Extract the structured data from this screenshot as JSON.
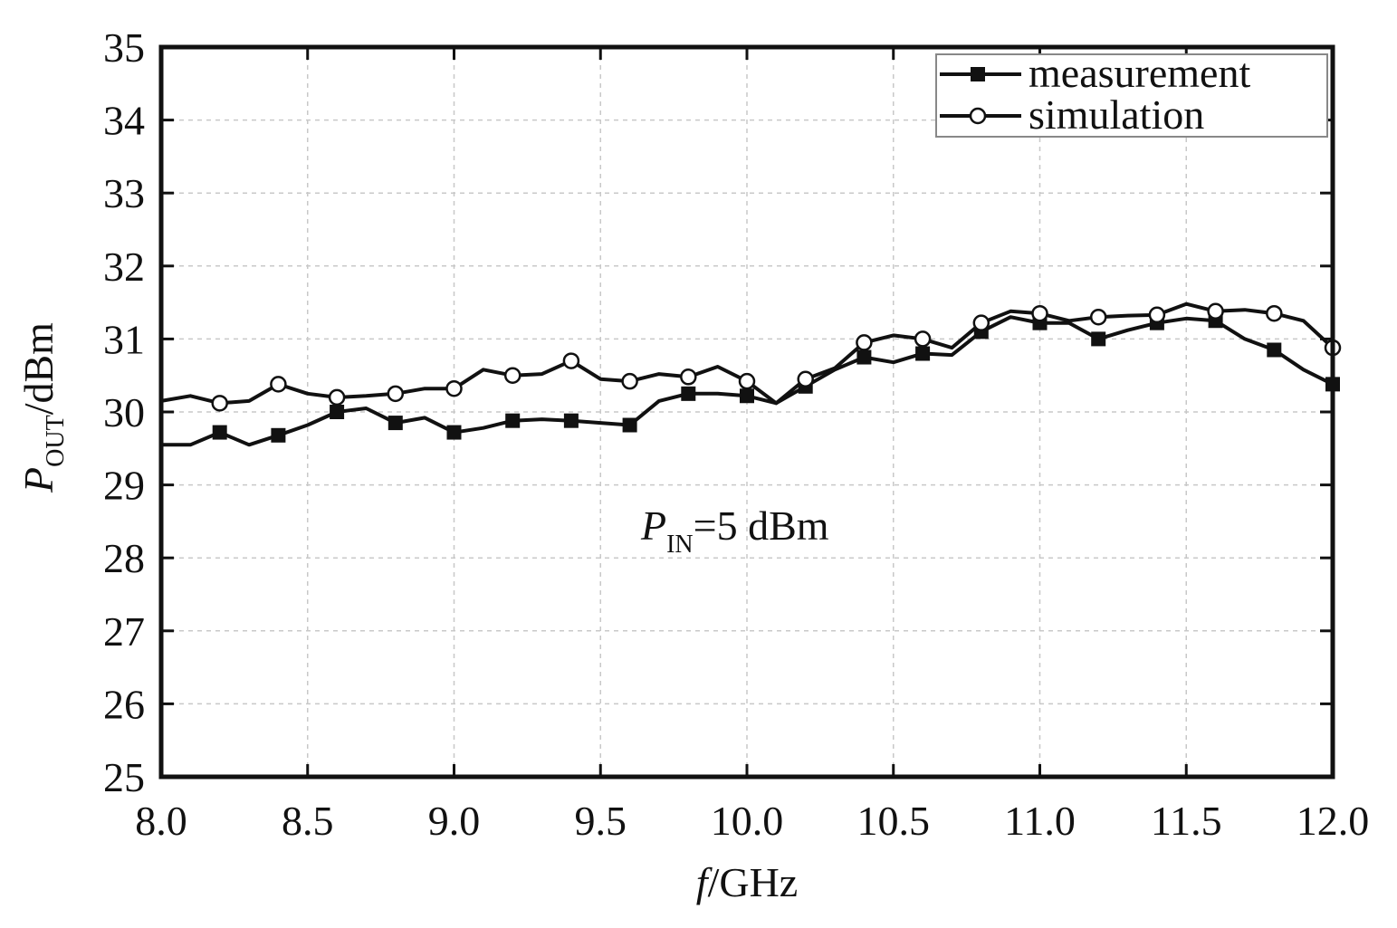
{
  "chart_data": {
    "type": "line",
    "xlabel": {
      "italic": "f",
      "rest": "/GHz"
    },
    "ylabel": {
      "main": "P",
      "sub": "OUT",
      "rest": "/dBm"
    },
    "xlim": [
      8.0,
      12.0
    ],
    "ylim": [
      25,
      35
    ],
    "x_ticks": [
      "8.0",
      "8.5",
      "9.0",
      "9.5",
      "10.0",
      "10.5",
      "11.0",
      "11.5",
      "12.0"
    ],
    "y_ticks": [
      "25",
      "26",
      "27",
      "28",
      "29",
      "30",
      "31",
      "32",
      "33",
      "34",
      "35"
    ],
    "grid": true,
    "legend_position": "top-right",
    "annotation": {
      "main": "P",
      "sub": "IN",
      "rest": "=5 dBm"
    },
    "series": [
      {
        "name": "measurement",
        "marker": "filled-square",
        "color": "#111111",
        "x": [
          8.0,
          8.1,
          8.2,
          8.3,
          8.4,
          8.5,
          8.6,
          8.7,
          8.8,
          8.9,
          9.0,
          9.1,
          9.2,
          9.3,
          9.4,
          9.5,
          9.6,
          9.7,
          9.8,
          9.9,
          10.0,
          10.1,
          10.2,
          10.3,
          10.4,
          10.5,
          10.6,
          10.7,
          10.8,
          10.9,
          11.0,
          11.1,
          11.2,
          11.3,
          11.4,
          11.5,
          11.6,
          11.7,
          11.8,
          11.9,
          12.0
        ],
        "y": [
          29.55,
          29.55,
          29.72,
          29.55,
          29.68,
          29.82,
          30.0,
          30.05,
          29.85,
          29.92,
          29.72,
          29.78,
          29.88,
          29.9,
          29.88,
          29.85,
          29.82,
          30.15,
          30.25,
          30.25,
          30.22,
          30.12,
          30.35,
          30.58,
          30.75,
          30.68,
          30.8,
          30.78,
          31.1,
          31.3,
          31.22,
          31.22,
          31.0,
          31.12,
          31.22,
          31.28,
          31.25,
          31.0,
          30.85,
          30.58,
          30.38
        ],
        "marker_x": [
          8.2,
          8.4,
          8.6,
          8.8,
          9.0,
          9.2,
          9.4,
          9.6,
          9.8,
          10.0,
          10.2,
          10.4,
          10.6,
          10.8,
          11.0,
          11.2,
          11.4,
          11.6,
          11.8,
          12.0
        ]
      },
      {
        "name": "simulation",
        "marker": "open-circle",
        "color": "#111111",
        "x": [
          8.0,
          8.1,
          8.2,
          8.3,
          8.4,
          8.5,
          8.6,
          8.7,
          8.8,
          8.9,
          9.0,
          9.1,
          9.2,
          9.3,
          9.4,
          9.5,
          9.6,
          9.7,
          9.8,
          9.9,
          10.0,
          10.1,
          10.2,
          10.3,
          10.4,
          10.5,
          10.6,
          10.7,
          10.8,
          10.9,
          11.0,
          11.1,
          11.2,
          11.3,
          11.4,
          11.5,
          11.6,
          11.7,
          11.8,
          11.9,
          12.0
        ],
        "y": [
          30.15,
          30.22,
          30.12,
          30.15,
          30.38,
          30.25,
          30.2,
          30.22,
          30.25,
          30.32,
          30.32,
          30.58,
          30.5,
          30.52,
          30.7,
          30.45,
          30.42,
          30.52,
          30.48,
          30.62,
          30.42,
          30.12,
          30.45,
          30.6,
          30.95,
          31.05,
          31.0,
          30.88,
          31.22,
          31.38,
          31.35,
          31.25,
          31.3,
          31.32,
          31.33,
          31.48,
          31.38,
          31.4,
          31.35,
          31.25,
          30.88
        ],
        "marker_x": [
          8.2,
          8.4,
          8.6,
          8.8,
          9.0,
          9.2,
          9.4,
          9.6,
          9.8,
          10.0,
          10.2,
          10.4,
          10.6,
          10.8,
          11.0,
          11.2,
          11.4,
          11.6,
          11.8,
          12.0
        ]
      }
    ]
  }
}
